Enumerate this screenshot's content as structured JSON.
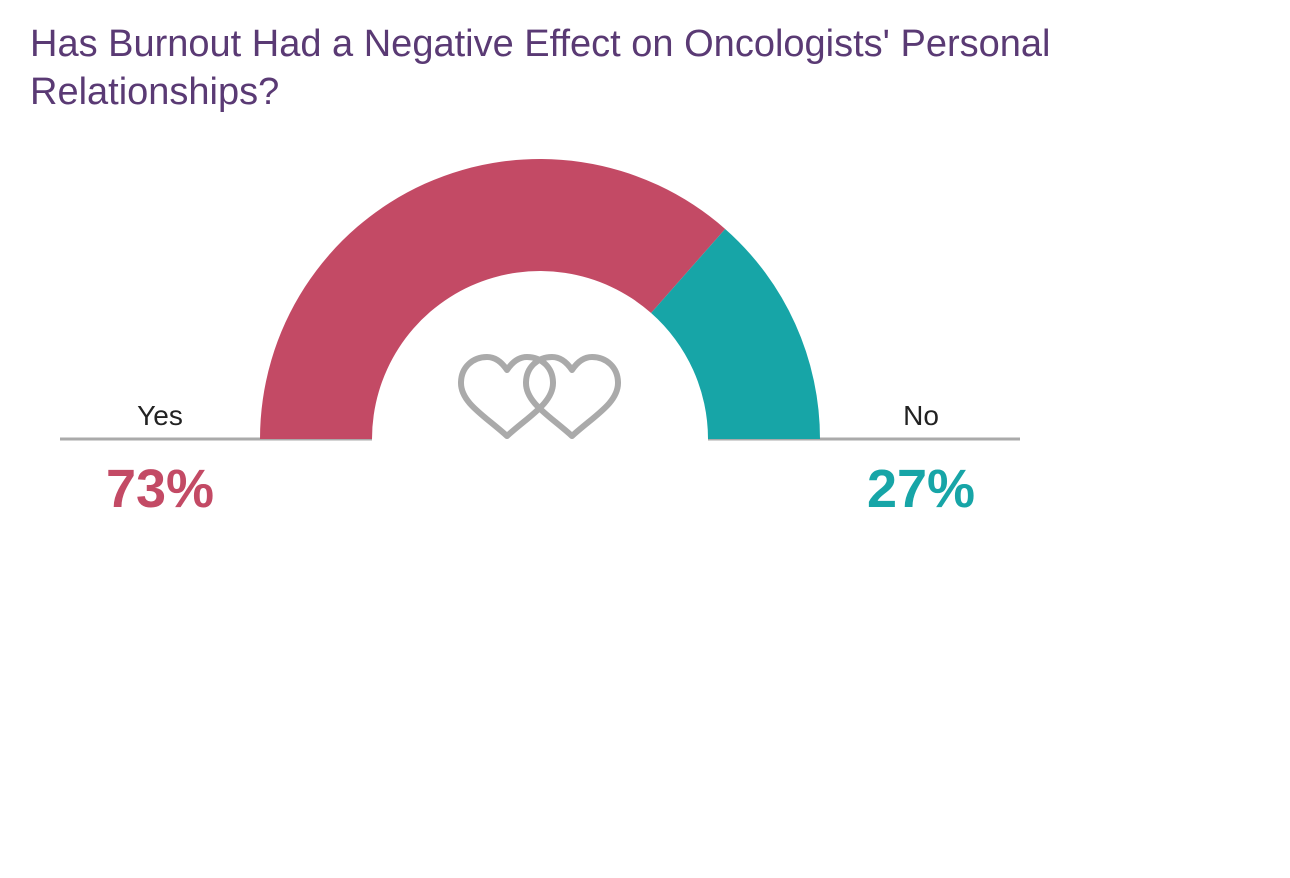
{
  "chart_data": {
    "type": "pie",
    "variant": "half-donut",
    "title": "Has Burnout Had a Negative Effect on Oncologists' Personal Relationships?",
    "categories": [
      "Yes",
      "No"
    ],
    "values": [
      73,
      27
    ],
    "value_labels": [
      "73%",
      "27%"
    ],
    "unit": "%",
    "colors": [
      "#c34a65",
      "#17a5a7"
    ],
    "baseline_color": "#aaaaaa",
    "center_icon": "interlocked-hearts-icon",
    "icon_color": "#aaaaaa"
  }
}
